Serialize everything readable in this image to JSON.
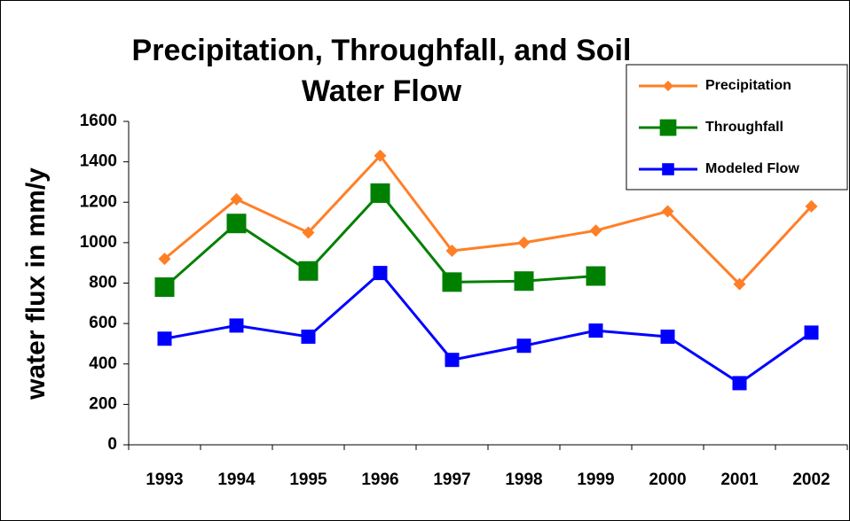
{
  "chart_data": {
    "type": "line",
    "title": "Precipitation, Throughfall, and Soil Water Flow",
    "y_label": "water flux in mm/y",
    "categories": [
      "1993",
      "1994",
      "1995",
      "1996",
      "1997",
      "1998",
      "1999",
      "2000",
      "2001",
      "2002"
    ],
    "series": [
      {
        "name": "Precipitation",
        "color": "#ff7f27",
        "marker": "diamond",
        "values": [
          920,
          1215,
          1050,
          1430,
          960,
          1000,
          1060,
          1155,
          795,
          1180
        ]
      },
      {
        "name": "Throughfall",
        "color": "#008000",
        "marker": "square",
        "values": [
          780,
          1095,
          860,
          1245,
          805,
          810,
          835,
          null,
          null,
          null
        ]
      },
      {
        "name": "Modeled Flow",
        "color": "#0000ff",
        "marker": "square",
        "values": [
          525,
          590,
          535,
          850,
          420,
          490,
          565,
          535,
          305,
          555
        ]
      }
    ],
    "ylim": [
      0,
      1600
    ],
    "yticks": [
      0,
      200,
      400,
      600,
      800,
      1000,
      1200,
      1400,
      1600
    ],
    "grid": false,
    "legend": "upper right"
  }
}
